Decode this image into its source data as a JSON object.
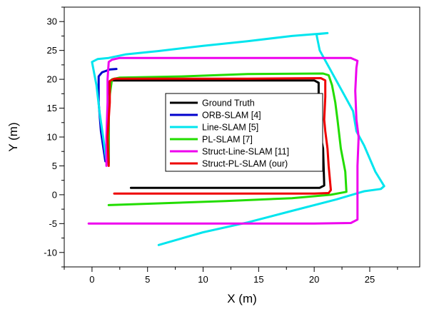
{
  "chart_data": {
    "type": "line",
    "xlabel": "X (m)",
    "ylabel": "Y (m)",
    "xlim": [
      -2.5,
      29.5
    ],
    "ylim": [
      -12.5,
      32.5
    ],
    "xticks": [
      0,
      5,
      10,
      15,
      20,
      25
    ],
    "yticks": [
      -10,
      -5,
      0,
      5,
      10,
      15,
      20,
      25,
      30
    ],
    "grid": false,
    "legend_position": "center",
    "series": [
      {
        "name": "Ground Truth",
        "color": "#000000",
        "points": [
          [
            3.5,
            1.2
          ],
          [
            20.5,
            1.2
          ],
          [
            20.9,
            1.6
          ],
          [
            20.8,
            8.0
          ],
          [
            20.4,
            12.0
          ],
          [
            20.4,
            19.4
          ],
          [
            20.0,
            19.8
          ],
          [
            1.7,
            19.8
          ],
          [
            1.5,
            19.4
          ],
          [
            1.5,
            5.5
          ]
        ]
      },
      {
        "name": "ORB-SLAM [4]",
        "color": "#0000cd",
        "points": [
          [
            1.2,
            5.8
          ],
          [
            0.8,
            11.0
          ],
          [
            0.6,
            16.0
          ],
          [
            0.6,
            20.5
          ],
          [
            0.9,
            21.2
          ],
          [
            1.6,
            21.7
          ],
          [
            2.2,
            21.8
          ]
        ]
      },
      {
        "name": "Line-SLAM [5]",
        "color": "#00e5ee",
        "points": [
          [
            6.0,
            -8.7
          ],
          [
            10.0,
            -6.5
          ],
          [
            14.0,
            -4.8
          ],
          [
            18.0,
            -2.8
          ],
          [
            22.0,
            -0.8
          ],
          [
            24.5,
            0.6
          ],
          [
            26.0,
            1.0
          ],
          [
            26.3,
            1.5
          ],
          [
            25.5,
            4.0
          ],
          [
            24.5,
            8.5
          ],
          [
            23.8,
            11.0
          ],
          [
            23.5,
            14.5
          ],
          [
            22.5,
            18.0
          ],
          [
            21.5,
            21.5
          ],
          [
            20.5,
            25.0
          ],
          [
            20.2,
            27.8
          ],
          [
            21.2,
            28.0
          ],
          [
            18.0,
            27.5
          ],
          [
            14.0,
            26.6
          ],
          [
            10.0,
            25.8
          ],
          [
            6.0,
            24.9
          ],
          [
            3.0,
            24.3
          ],
          [
            1.5,
            23.7
          ],
          [
            0.5,
            23.5
          ],
          [
            0.0,
            23.0
          ],
          [
            0.4,
            19.0
          ],
          [
            0.7,
            14.0
          ],
          [
            1.0,
            10.0
          ],
          [
            1.3,
            5.8
          ]
        ]
      },
      {
        "name": "PL-SLAM [7]",
        "color": "#22dd00",
        "points": [
          [
            1.5,
            -1.8
          ],
          [
            6.0,
            -1.5
          ],
          [
            12.0,
            -1.1
          ],
          [
            18.0,
            -0.6
          ],
          [
            21.5,
            0.0
          ],
          [
            22.9,
            0.5
          ],
          [
            22.8,
            4.0
          ],
          [
            22.4,
            8.0
          ],
          [
            22.1,
            13.0
          ],
          [
            21.9,
            16.0
          ],
          [
            21.6,
            19.0
          ],
          [
            21.3,
            20.7
          ],
          [
            20.8,
            21.0
          ],
          [
            14.0,
            20.9
          ],
          [
            8.0,
            20.5
          ],
          [
            2.5,
            20.3
          ],
          [
            1.8,
            20.0
          ],
          [
            1.5,
            16.0
          ],
          [
            1.5,
            5.2
          ]
        ]
      },
      {
        "name": "Struct-Line-SLAM [11]",
        "color": "#ee00ee",
        "points": [
          [
            -0.3,
            -5.0
          ],
          [
            5.0,
            -5.0
          ],
          [
            10.0,
            -5.0
          ],
          [
            15.0,
            -5.0
          ],
          [
            20.0,
            -5.0
          ],
          [
            23.3,
            -4.9
          ],
          [
            23.9,
            -4.3
          ],
          [
            23.9,
            5.0
          ],
          [
            24.0,
            10.0
          ],
          [
            23.8,
            13.0
          ],
          [
            23.7,
            18.0
          ],
          [
            23.8,
            22.0
          ],
          [
            23.9,
            23.2
          ],
          [
            23.3,
            23.7
          ],
          [
            18.0,
            23.7
          ],
          [
            12.0,
            23.7
          ],
          [
            6.0,
            23.7
          ],
          [
            2.5,
            23.7
          ],
          [
            1.8,
            23.4
          ],
          [
            1.5,
            23.0
          ],
          [
            1.4,
            20.0
          ],
          [
            1.4,
            16.0
          ],
          [
            1.3,
            10.0
          ],
          [
            1.3,
            5.0
          ]
        ]
      },
      {
        "name": "Struct-PL-SLAM (our)",
        "color": "#ee0000",
        "points": [
          [
            2.0,
            0.2
          ],
          [
            8.0,
            0.2
          ],
          [
            14.0,
            0.2
          ],
          [
            20.0,
            0.2
          ],
          [
            21.3,
            0.3
          ],
          [
            21.5,
            0.8
          ],
          [
            21.3,
            5.0
          ],
          [
            21.2,
            8.0
          ],
          [
            21.0,
            11.0
          ],
          [
            20.9,
            13.0
          ],
          [
            21.0,
            17.0
          ],
          [
            21.0,
            19.8
          ],
          [
            20.6,
            20.2
          ],
          [
            14.0,
            20.1
          ],
          [
            8.0,
            20.1
          ],
          [
            2.0,
            20.1
          ],
          [
            1.6,
            19.7
          ],
          [
            1.6,
            16.0
          ],
          [
            1.4,
            10.0
          ],
          [
            1.5,
            5.0
          ]
        ]
      }
    ]
  }
}
